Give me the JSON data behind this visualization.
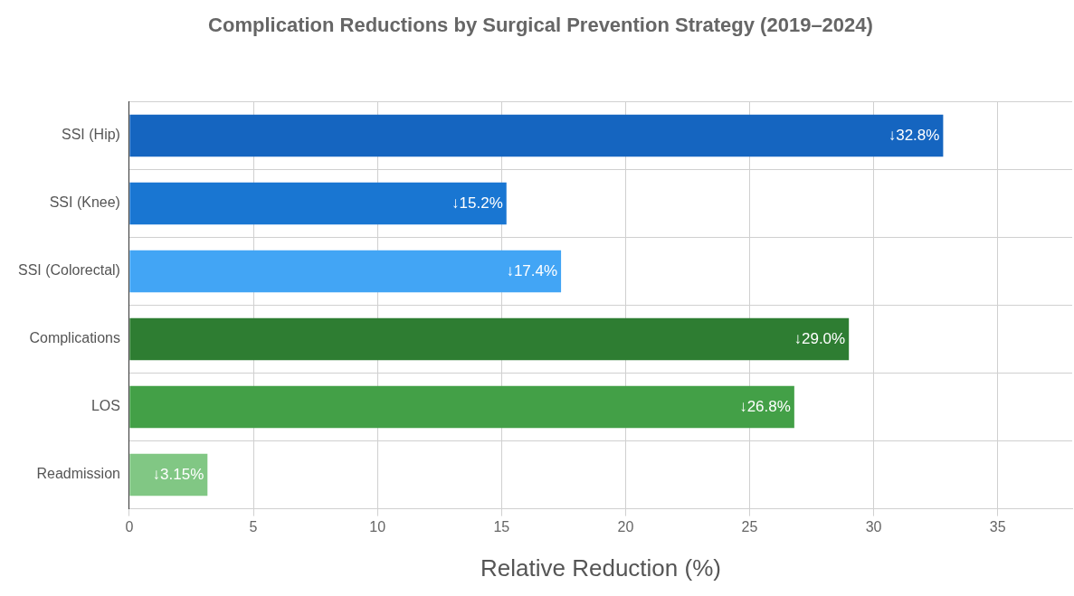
{
  "chart_data": {
    "type": "bar",
    "orientation": "horizontal",
    "title": "Complication Reductions by Surgical Prevention Strategy (2019–2024)",
    "xlabel": "Relative Reduction (%)",
    "categories": [
      "SSI (Hip)",
      "SSI (Knee)",
      "SSI (Colorectal)",
      "Complications",
      "LOS",
      "Readmission"
    ],
    "values": [
      32.8,
      15.2,
      17.4,
      29.0,
      26.8,
      3.15
    ],
    "colors": [
      "#1565c0",
      "#1976d2",
      "#42a5f5",
      "#2e7d32",
      "#43a047",
      "#81c784"
    ],
    "value_labels": [
      "↓32.8%",
      "↓15.2%",
      "↓17.4%",
      "↓29.0%",
      "↓26.8%",
      "↓3.15%"
    ],
    "xlim": [
      0,
      38
    ],
    "xticks": [
      0,
      5,
      10,
      15,
      20,
      25,
      30,
      35
    ],
    "grid": true,
    "legend": false
  }
}
